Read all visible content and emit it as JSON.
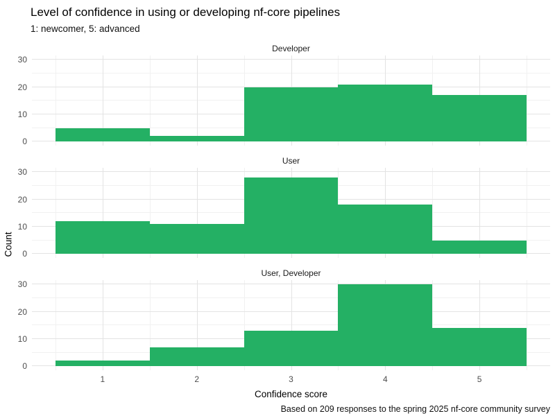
{
  "title": "Level of confidence in using or developing nf-core pipelines",
  "subtitle": "1: newcomer, 5: advanced",
  "caption": "Based on 209 responses to the spring 2025 nf-core community survey",
  "chart_data": {
    "type": "bar",
    "variant": "faceted-histogram",
    "title": "Level of confidence in using or developing nf-core pipelines",
    "subtitle": "1: newcomer, 5: advanced",
    "caption": "Based on 209 responses to the spring 2025 nf-core community survey",
    "xlabel": "Confidence score",
    "ylabel": "Count",
    "categories": [
      1,
      2,
      3,
      4,
      5
    ],
    "x_tick_labels": [
      "1",
      "2",
      "3",
      "4",
      "5"
    ],
    "y_tick_labels": [
      "0",
      "10",
      "20",
      "30"
    ],
    "y_ticks": [
      0,
      10,
      20,
      30
    ],
    "y_minor_ticks": [
      5,
      15,
      25
    ],
    "bin_width": 1,
    "xlim": [
      0.25,
      5.75
    ],
    "ylim": [
      -1.5,
      31.5
    ],
    "grid": "on",
    "legend": "none",
    "bar_color": "#24B064",
    "series": [
      {
        "name": "Developer",
        "values": [
          5,
          2,
          20,
          21,
          17
        ]
      },
      {
        "name": "User",
        "values": [
          12,
          11,
          28,
          18,
          5
        ]
      },
      {
        "name": "User, Developer",
        "values": [
          2,
          7,
          13,
          30,
          14
        ]
      }
    ]
  },
  "colors": {
    "bar": "#24B064",
    "grid_major": "#E3E3E3",
    "grid_minor": "#F1F1F1",
    "tick_text": "#4D4D4D",
    "strip_text": "#1A1A1A",
    "background": "#FFFFFF"
  }
}
